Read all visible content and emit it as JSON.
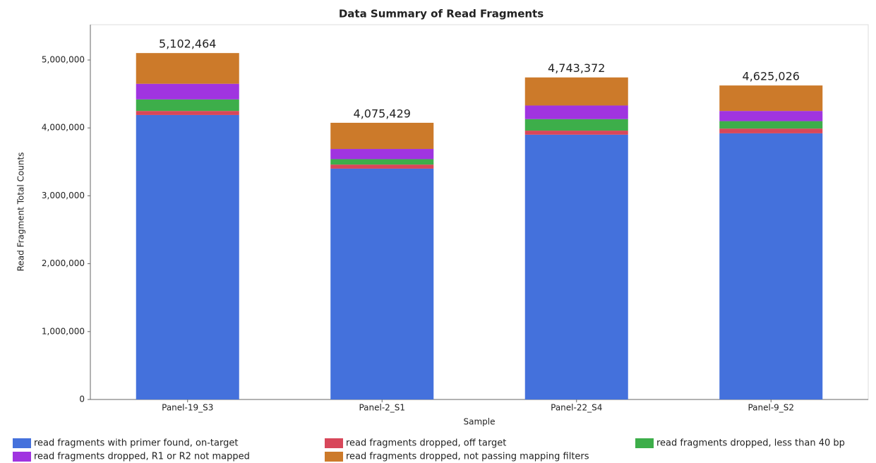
{
  "chart_data": {
    "type": "stacked_bar",
    "title": "Data Summary of Read Fragments",
    "x_label": "Sample",
    "y_label": "Read Fragment Total Counts",
    "categories": [
      "Panel-19_S3",
      "Panel-2_S1",
      "Panel-22_S4",
      "Panel-9_S2"
    ],
    "series": [
      {
        "name": "read fragments with primer found, on-target",
        "color": "#4471dc",
        "values": [
          4190000,
          3400000,
          3900000,
          3920000
        ]
      },
      {
        "name": "read fragments dropped, off target",
        "color": "#d8475a",
        "values": [
          60000,
          60000,
          60000,
          70000
        ]
      },
      {
        "name": "read fragments dropped, less than 40 bp",
        "color": "#3dae4a",
        "values": [
          170000,
          80000,
          170000,
          110000
        ]
      },
      {
        "name": "read fragments dropped, R1 or R2 not mapped",
        "color": "#a034e0",
        "values": [
          230000,
          150000,
          200000,
          150000
        ]
      },
      {
        "name": "read fragments dropped, not passing mapping filters",
        "color": "#cc7a2a",
        "values": [
          452464,
          385429,
          413372,
          375026
        ]
      }
    ],
    "totals": {
      "values": [
        5102464,
        4075429,
        4743372,
        4625026
      ],
      "value_labels": [
        "5,102,464",
        "4,075,429",
        "4,743,372",
        "4,625,026"
      ]
    },
    "ylim": [
      0,
      5520000
    ],
    "yticks": [
      0,
      {
        "value": 1000000,
        "label": "1,000,000"
      },
      {
        "value": 2000000,
        "label": "2,000,000"
      },
      {
        "value": 3000000,
        "label": "3,000,000"
      },
      {
        "value": 4000000,
        "label": "4,000,000"
      },
      {
        "value": 5000000,
        "label": "5,000,000"
      }
    ],
    "grid": false
  }
}
